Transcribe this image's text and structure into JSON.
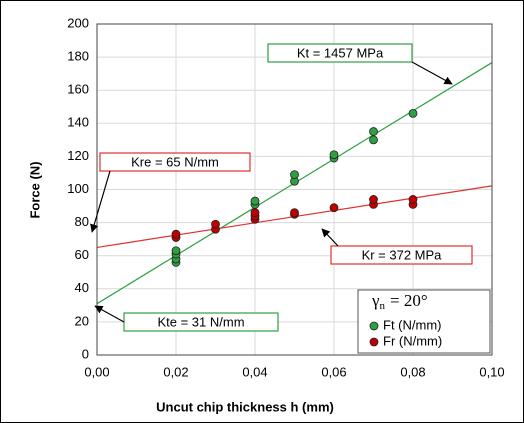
{
  "chart_data": {
    "type": "scatter",
    "x_label": "Uncut chip thickness h (mm)",
    "y_label": "Force (N)",
    "xlim": [
      0,
      0.1
    ],
    "ylim": [
      0,
      200
    ],
    "xticks": [
      {
        "value": 0,
        "label": "0,00"
      },
      {
        "value": 0.02,
        "label": "0,02"
      },
      {
        "value": 0.04,
        "label": "0,04"
      },
      {
        "value": 0.06,
        "label": "0,06"
      },
      {
        "value": 0.08,
        "label": "0,08"
      },
      {
        "value": 0.1,
        "label": "0,10"
      }
    ],
    "yticks": [
      0,
      20,
      40,
      60,
      80,
      100,
      120,
      140,
      160,
      180,
      200
    ],
    "grid": true,
    "legend_position": "lower right",
    "legend_title": {
      "symbol": "γ",
      "subscript": "n",
      "text": "= 20°"
    },
    "series": [
      {
        "name": "Ft (N/mm)",
        "color": "#2ea043",
        "x": [
          0.02,
          0.02,
          0.02,
          0.02,
          0.04,
          0.04,
          0.05,
          0.05,
          0.06,
          0.06,
          0.07,
          0.07,
          0.08
        ],
        "values": [
          56,
          58,
          61,
          63,
          91,
          93,
          105,
          109,
          119,
          121,
          130,
          135,
          146
        ]
      },
      {
        "name": "Fr (N/mm)",
        "color": "#c00000",
        "x": [
          0.02,
          0.02,
          0.03,
          0.03,
          0.04,
          0.04,
          0.04,
          0.05,
          0.05,
          0.06,
          0.07,
          0.07,
          0.08,
          0.08
        ],
        "values": [
          71,
          73,
          76,
          79,
          82,
          84,
          86,
          85,
          86,
          89,
          91,
          94,
          91,
          94
        ]
      }
    ],
    "fit_lines": [
      {
        "color": "#2ea043",
        "x": [
          0,
          0.1
        ],
        "values": [
          31,
          176.7
        ]
      },
      {
        "color": "#e03030",
        "x": [
          0,
          0.1
        ],
        "values": [
          65,
          102.2
        ]
      }
    ],
    "annotations": [
      {
        "text": "Kt = 1457 MPa",
        "color": "#2ea043"
      },
      {
        "text": "Kre = 65 N/mm",
        "color": "#e03030"
      },
      {
        "text": "Kr = 372 MPa",
        "color": "#e03030"
      },
      {
        "text": "Kte = 31 N/mm",
        "color": "#2ea043"
      }
    ]
  }
}
